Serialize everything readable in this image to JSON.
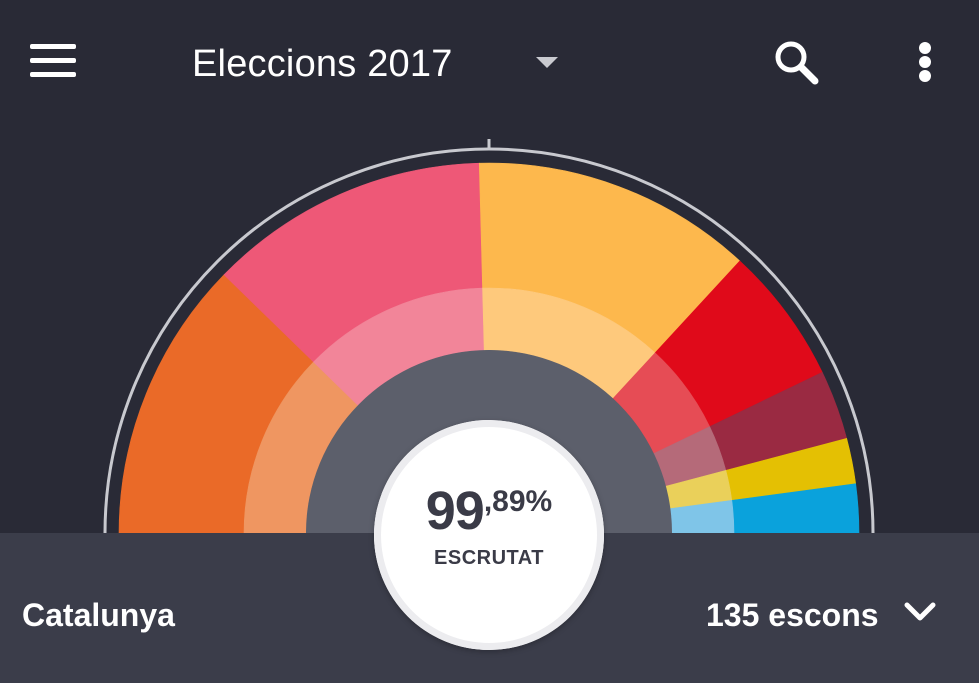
{
  "header": {
    "title": "Eleccions 2017",
    "menu_icon": "hamburger-menu-icon",
    "search_icon": "search-icon",
    "more_icon": "more-vertical-icon"
  },
  "results": {
    "scrutinized_int": "99",
    "scrutinized_dec": ",89%",
    "scrutinized_label": "ESCRUTAT"
  },
  "footer": {
    "region": "Catalunya",
    "seats": "135 escons"
  },
  "colors": {
    "background": "#292a36",
    "footer": "#3b3d4a",
    "hemicycle_center": "#5c5f6b"
  },
  "parties": [
    {
      "color": "#ea6a28",
      "inner_color": "#ef9661",
      "share": 0.2459
    },
    {
      "color": "#ee5877",
      "inner_color": "#f28599",
      "share": 0.2457
    },
    {
      "color": "#fdb84d",
      "inner_color": "#fec97c",
      "share": 0.2455
    },
    {
      "color": "#e00a1a",
      "inner_color": "#e64c55",
      "share": 0.1199
    },
    {
      "color": "#9a2a42",
      "inner_color": "#b56a79",
      "share": 0.0607
    },
    {
      "color": "#e4c003",
      "inner_color": "#ead05a",
      "share": 0.0398
    },
    {
      "color": "#0aa2dc",
      "inner_color": "#7fc5e8",
      "share": 0.0425
    }
  ]
}
